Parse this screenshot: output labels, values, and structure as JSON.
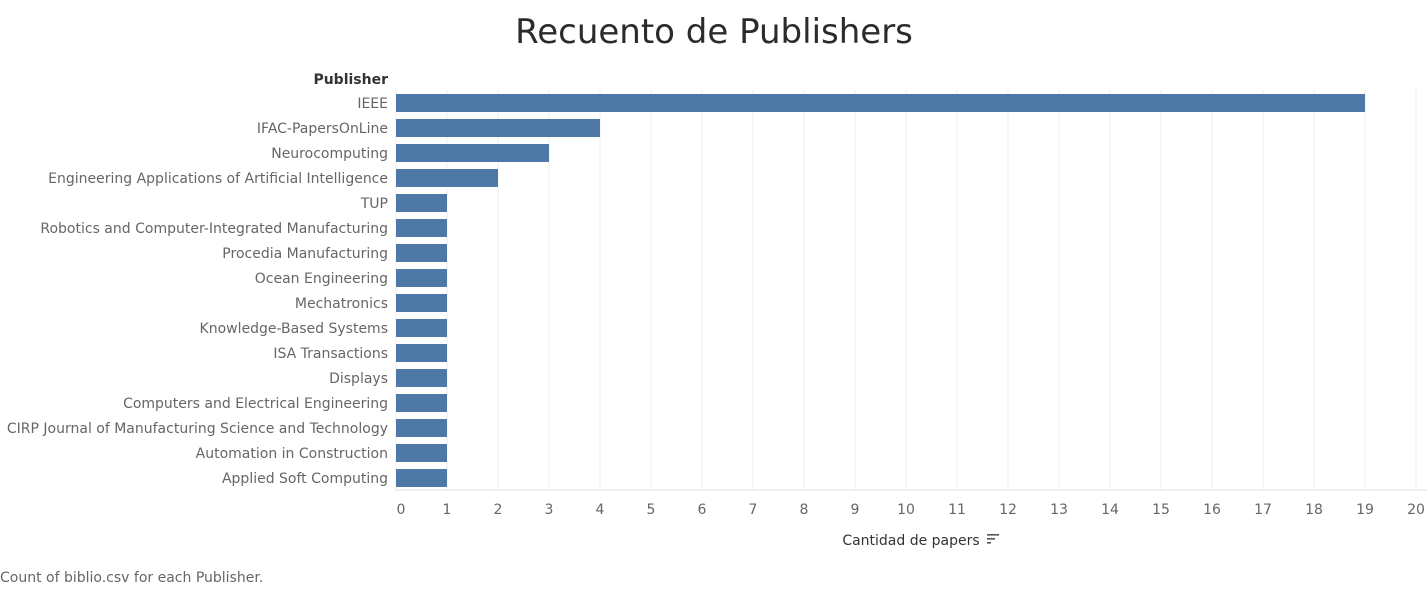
{
  "chart_data": {
    "type": "bar",
    "orientation": "horizontal",
    "title": "Recuento de Publishers",
    "row_header": "Publisher",
    "xlabel": "Cantidad de papers",
    "xlim": [
      0,
      20
    ],
    "x_ticks": [
      "0",
      "1",
      "2",
      "3",
      "4",
      "5",
      "6",
      "7",
      "8",
      "9",
      "10",
      "11",
      "12",
      "13",
      "14",
      "15",
      "16",
      "17",
      "18",
      "19",
      "20"
    ],
    "categories": [
      "IEEE",
      "IFAC-PapersOnLine",
      "Neurocomputing",
      "Engineering Applications of Artificial Intelligence",
      "TUP",
      "Robotics and Computer-Integrated Manufacturing",
      "Procedia Manufacturing",
      "Ocean Engineering",
      "Mechatronics",
      "Knowledge-Based Systems",
      "ISA Transactions",
      "Displays",
      "Computers and Electrical Engineering",
      "CIRP Journal of Manufacturing Science and Technology",
      "Automation in Construction",
      "Applied Soft Computing"
    ],
    "values": [
      19,
      4,
      3,
      2,
      1,
      1,
      1,
      1,
      1,
      1,
      1,
      1,
      1,
      1,
      1,
      1
    ],
    "bar_color": "#4e79a7",
    "grid": true,
    "caption": "Count of biblio.csv for each Publisher."
  }
}
